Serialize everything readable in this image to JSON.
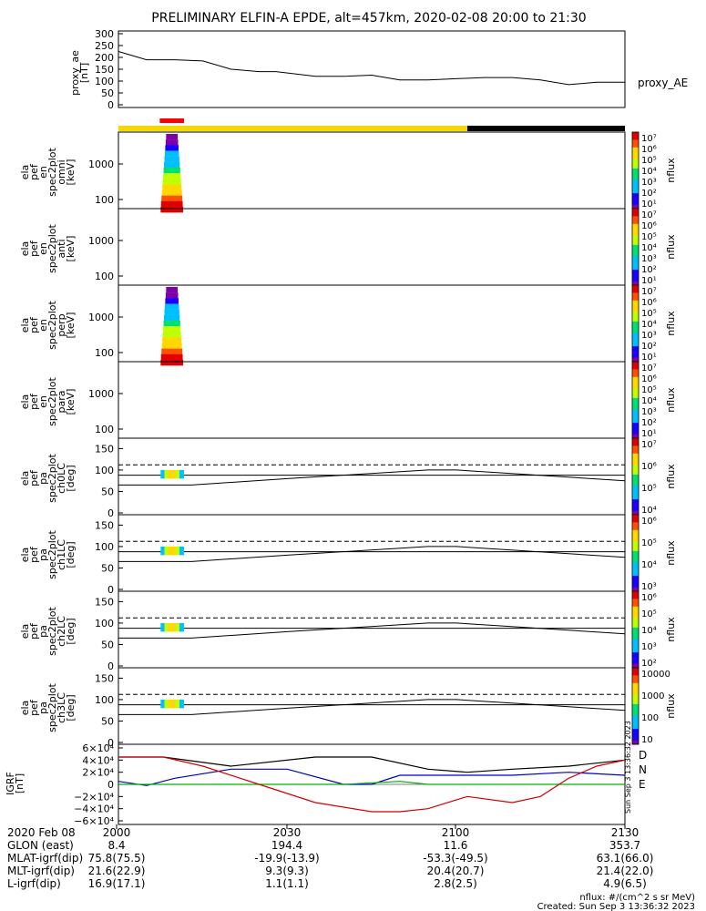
{
  "title": "PRELIMINARY ELFIN-A EPDE, alt=457km, 2020-02-08 20:00 to 21:30",
  "colors": {
    "sun": "#f5d800",
    "shadow": "#000000",
    "marker": "#ff0000",
    "igrf_d": "#d40000",
    "igrf_n": "#0000c8",
    "igrf_e": "#00b000"
  },
  "ae_panel": {
    "ylabel": [
      "proxy_ae",
      "[nT]"
    ],
    "legend": "proxy_AE",
    "yticks": [
      "0",
      "50",
      "100",
      "150",
      "200",
      "250",
      "300"
    ],
    "ylim": [
      0,
      300
    ]
  },
  "spec_panels": [
    {
      "ylabel": [
        "ela",
        "pef",
        "en",
        "spec2plot",
        "omni",
        "[keV]"
      ],
      "yticks": [
        "100",
        "1000"
      ],
      "colorbar_ticks": [
        "10⁷",
        "10⁶",
        "10⁵",
        "10⁴",
        "10³",
        "10²",
        "10¹"
      ],
      "colorbar_label": "nflux"
    },
    {
      "ylabel": [
        "ela",
        "pef",
        "en",
        "spec2plot",
        "anti",
        "[keV]"
      ],
      "yticks": [
        "100",
        "1000"
      ],
      "colorbar_ticks": [
        "10⁷",
        "10⁶",
        "10⁵",
        "10⁴",
        "10³",
        "10²",
        "10¹"
      ],
      "colorbar_label": "nflux"
    },
    {
      "ylabel": [
        "ela",
        "pef",
        "en",
        "spec2plot",
        "perp",
        "[keV]"
      ],
      "yticks": [
        "100",
        "1000"
      ],
      "colorbar_ticks": [
        "10⁷",
        "10⁶",
        "10⁵",
        "10⁴",
        "10³",
        "10²",
        "10¹"
      ],
      "colorbar_label": "nflux"
    },
    {
      "ylabel": [
        "ela",
        "pef",
        "en",
        "spec2plot",
        "para",
        "[keV]"
      ],
      "yticks": [
        "100",
        "1000"
      ],
      "colorbar_ticks": [
        "10⁷",
        "10⁶",
        "10⁵",
        "10⁴",
        "10³",
        "10²",
        "10¹"
      ],
      "colorbar_label": "nflux"
    }
  ],
  "pa_panels": [
    {
      "ylabel": [
        "ela",
        "pef",
        "pa",
        "spec2plot",
        "ch0LC",
        "[deg]"
      ],
      "yticks": [
        "0",
        "50",
        "100",
        "150"
      ],
      "colorbar_ticks": [
        "10⁷",
        "10⁶",
        "10⁵",
        "10⁴"
      ],
      "colorbar_label": "nflux"
    },
    {
      "ylabel": [
        "ela",
        "pef",
        "pa",
        "spec2plot",
        "ch1LC",
        "[deg]"
      ],
      "yticks": [
        "0",
        "50",
        "100",
        "150"
      ],
      "colorbar_ticks": [
        "10⁶",
        "10⁵",
        "10⁴",
        "10³"
      ],
      "colorbar_label": "nflux"
    },
    {
      "ylabel": [
        "ela",
        "pef",
        "pa",
        "spec2plot",
        "ch2LC",
        "[deg]"
      ],
      "yticks": [
        "0",
        "50",
        "100",
        "150"
      ],
      "colorbar_ticks": [
        "10⁶",
        "10⁵",
        "10⁴",
        "10³",
        "10²"
      ],
      "colorbar_label": "nflux"
    },
    {
      "ylabel": [
        "ela",
        "pef",
        "pa",
        "spec2plot",
        "ch3LC",
        "[deg]"
      ],
      "yticks": [
        "0",
        "50",
        "100",
        "150"
      ],
      "colorbar_ticks": [
        "10000",
        "1000",
        "100",
        "10"
      ],
      "colorbar_label": "nflux"
    }
  ],
  "igrf_panel": {
    "ylabel": [
      "IGRF",
      "[nT]"
    ],
    "yticks": [
      "6×10⁴",
      "4×10⁴",
      "2×10⁴",
      "0",
      "−2×10⁴",
      "−4×10⁴",
      "−6×10⁴"
    ],
    "legend": [
      "D",
      "N",
      "E"
    ],
    "side_text": "Sun Sep  3 13:36:32 2023"
  },
  "footer": {
    "labels": [
      "2020 Feb 08",
      "GLON (east)",
      "MLAT-igrf(dip)",
      "MLT-igrf(dip)",
      "L-igrf(dip)"
    ],
    "columns": [
      {
        "time": "2000",
        "glon": "8.4",
        "mlat": "75.8(75.5)",
        "mlt": "21.6(22.9)",
        "l": "16.9(17.1)"
      },
      {
        "time": "2030",
        "glon": "194.4",
        "mlat": "-19.9(-13.9)",
        "mlt": "9.3(9.3)",
        "l": "1.1(1.1)"
      },
      {
        "time": "2100",
        "glon": "11.6",
        "mlat": "-53.3(-49.5)",
        "mlt": "20.4(20.7)",
        "l": "2.8(2.5)"
      },
      {
        "time": "2130",
        "glon": "353.7",
        "mlat": "63.1(66.0)",
        "mlt": "21.4(22.0)",
        "l": "4.9(6.5)"
      }
    ],
    "units": "nflux: #/(cm^2 s sr MeV)",
    "created": "Created: Sun Sep  3 13:36:32 2023"
  },
  "chart_data": {
    "type": "line",
    "title": "PRELIMINARY ELFIN-A EPDE, alt=457km, 2020-02-08 20:00 to 21:30",
    "x_range_min": [
      0,
      90
    ],
    "proxy_ae": {
      "x": [
        0,
        5,
        10,
        15,
        20,
        25,
        28,
        35,
        40,
        45,
        50,
        55,
        60,
        65,
        70,
        75,
        80,
        85,
        90
      ],
      "y": [
        225,
        190,
        190,
        185,
        150,
        140,
        140,
        120,
        120,
        125,
        105,
        105,
        110,
        115,
        115,
        105,
        85,
        95,
        95
      ]
    },
    "spec_burst_min": [
      7.5,
      11.5
    ],
    "sunlight_segments": [
      {
        "state": "sunlight",
        "start": 0,
        "end": 62
      },
      {
        "state": "shadow",
        "start": 62,
        "end": 90
      }
    ],
    "pa_loss_cone_dashed_deg": 112,
    "pa_loss_cone_solid": {
      "x": [
        0,
        13,
        30,
        55,
        60,
        90
      ],
      "y": [
        65,
        65,
        80,
        100,
        100,
        75
      ]
    },
    "pa_loss_cone_mid": {
      "x": [
        0,
        90
      ],
      "y": [
        88,
        88
      ]
    },
    "igrf": {
      "D": {
        "x": [
          0,
          8,
          15,
          25,
          35,
          45,
          50,
          55,
          62,
          70,
          75,
          80,
          85,
          90
        ],
        "y": [
          45000,
          45000,
          30000,
          0,
          -30000,
          -45000,
          -45000,
          -40000,
          -20000,
          -30000,
          -20000,
          10000,
          30000,
          40000
        ]
      },
      "N": {
        "x": [
          0,
          5,
          10,
          20,
          30,
          40,
          45,
          50,
          60,
          70,
          80,
          90
        ],
        "y": [
          5000,
          -2000,
          10000,
          25000,
          25000,
          0,
          0,
          15000,
          15000,
          15000,
          20000,
          15000
        ]
      },
      "E": {
        "x": [
          0,
          10,
          40,
          50,
          55,
          90
        ],
        "y": [
          0,
          0,
          0,
          5000,
          0,
          0
        ]
      },
      "total": {
        "x": [
          0,
          8,
          20,
          35,
          45,
          55,
          62,
          70,
          80,
          90
        ],
        "y": [
          45000,
          45000,
          30000,
          45000,
          45000,
          25000,
          20000,
          25000,
          30000,
          40000
        ]
      }
    }
  }
}
